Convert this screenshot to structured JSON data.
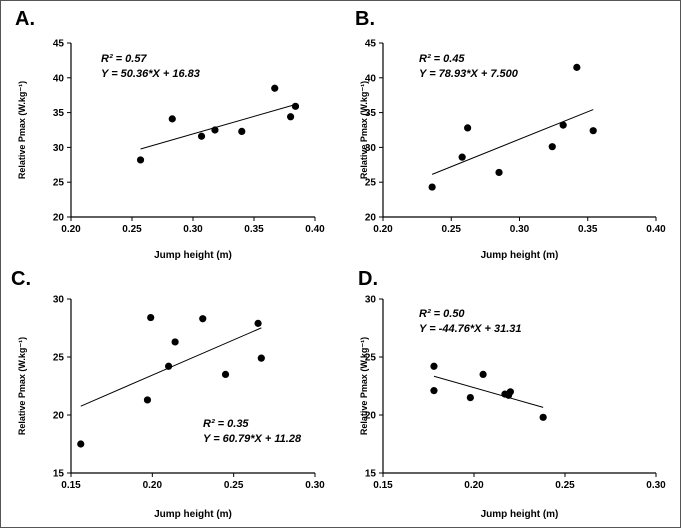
{
  "chart_data": [
    {
      "id": "A",
      "type": "scatter",
      "panel_label": "A.",
      "xlabel": "Jump height (m)",
      "ylabel": "Relative Pmax (W.kg⁻¹)",
      "xlim": [
        0.2,
        0.4
      ],
      "ylim": [
        20,
        45
      ],
      "xticks": [
        "0.20",
        "0.25",
        "0.30",
        "0.35",
        "0.40"
      ],
      "yticks": [
        "20",
        "25",
        "30",
        "35",
        "40",
        "45"
      ],
      "annotation": {
        "r2": "R² = 0.57",
        "eq": "Y = 50.36*X + 16.83"
      },
      "regression": {
        "slope": 50.36,
        "intercept": 16.83
      },
      "points": [
        [
          0.257,
          28.2
        ],
        [
          0.283,
          34.1
        ],
        [
          0.307,
          31.6
        ],
        [
          0.318,
          32.5
        ],
        [
          0.34,
          32.3
        ],
        [
          0.367,
          38.5
        ],
        [
          0.38,
          34.4
        ],
        [
          0.384,
          35.9
        ]
      ]
    },
    {
      "id": "B",
      "type": "scatter",
      "panel_label": "B.",
      "xlabel": "Jump height (m)",
      "ylabel": "Relative Pmax (W.kg⁻¹)",
      "xlim": [
        0.2,
        0.4
      ],
      "ylim": [
        20,
        45
      ],
      "xticks": [
        "0.20",
        "0.25",
        "0.30",
        "0.35",
        "0.40"
      ],
      "yticks": [
        "20",
        "25",
        "30",
        "35",
        "40",
        "45"
      ],
      "annotation": {
        "r2": "R² = 0.45",
        "eq": "Y = 78.93*X + 7.500"
      },
      "regression": {
        "slope": 78.93,
        "intercept": 7.5
      },
      "points": [
        [
          0.236,
          24.3
        ],
        [
          0.258,
          28.6
        ],
        [
          0.262,
          32.8
        ],
        [
          0.285,
          26.4
        ],
        [
          0.324,
          30.1
        ],
        [
          0.332,
          33.2
        ],
        [
          0.342,
          41.5
        ],
        [
          0.354,
          32.4
        ]
      ]
    },
    {
      "id": "C",
      "type": "scatter",
      "panel_label": "C.",
      "xlabel": "Jump height (m)",
      "ylabel": "Relative Pmax (W.kg⁻¹)",
      "xlim": [
        0.15,
        0.3
      ],
      "ylim": [
        15,
        30
      ],
      "xticks": [
        "0.15",
        "0.20",
        "0.25",
        "0.30"
      ],
      "yticks": [
        "15",
        "20",
        "25",
        "30"
      ],
      "annotation": {
        "r2": "R² = 0.35",
        "eq": "Y = 60.79*X + 11.28"
      },
      "regression": {
        "slope": 60.79,
        "intercept": 11.28
      },
      "points": [
        [
          0.156,
          17.5
        ],
        [
          0.197,
          21.3
        ],
        [
          0.199,
          28.4
        ],
        [
          0.21,
          24.2
        ],
        [
          0.214,
          26.3
        ],
        [
          0.231,
          28.3
        ],
        [
          0.245,
          23.5
        ],
        [
          0.265,
          27.9
        ],
        [
          0.267,
          24.9
        ]
      ]
    },
    {
      "id": "D",
      "type": "scatter",
      "panel_label": "D.",
      "xlabel": "Jump height (m)",
      "ylabel": "Relative Pmax (W.kg⁻¹)",
      "xlim": [
        0.15,
        0.3
      ],
      "ylim": [
        15,
        30
      ],
      "xticks": [
        "0.15",
        "0.20",
        "0.25",
        "0.30"
      ],
      "yticks": [
        "15",
        "20",
        "25",
        "30"
      ],
      "annotation": {
        "r2": "R² = 0.50",
        "eq": "Y = -44.76*X + 31.31"
      },
      "regression": {
        "slope": -44.76,
        "intercept": 31.31
      },
      "points": [
        [
          0.178,
          24.2
        ],
        [
          0.178,
          22.1
        ],
        [
          0.198,
          21.5
        ],
        [
          0.205,
          23.5
        ],
        [
          0.217,
          21.8
        ],
        [
          0.219,
          21.7
        ],
        [
          0.22,
          22.0
        ],
        [
          0.238,
          19.8
        ]
      ]
    }
  ]
}
